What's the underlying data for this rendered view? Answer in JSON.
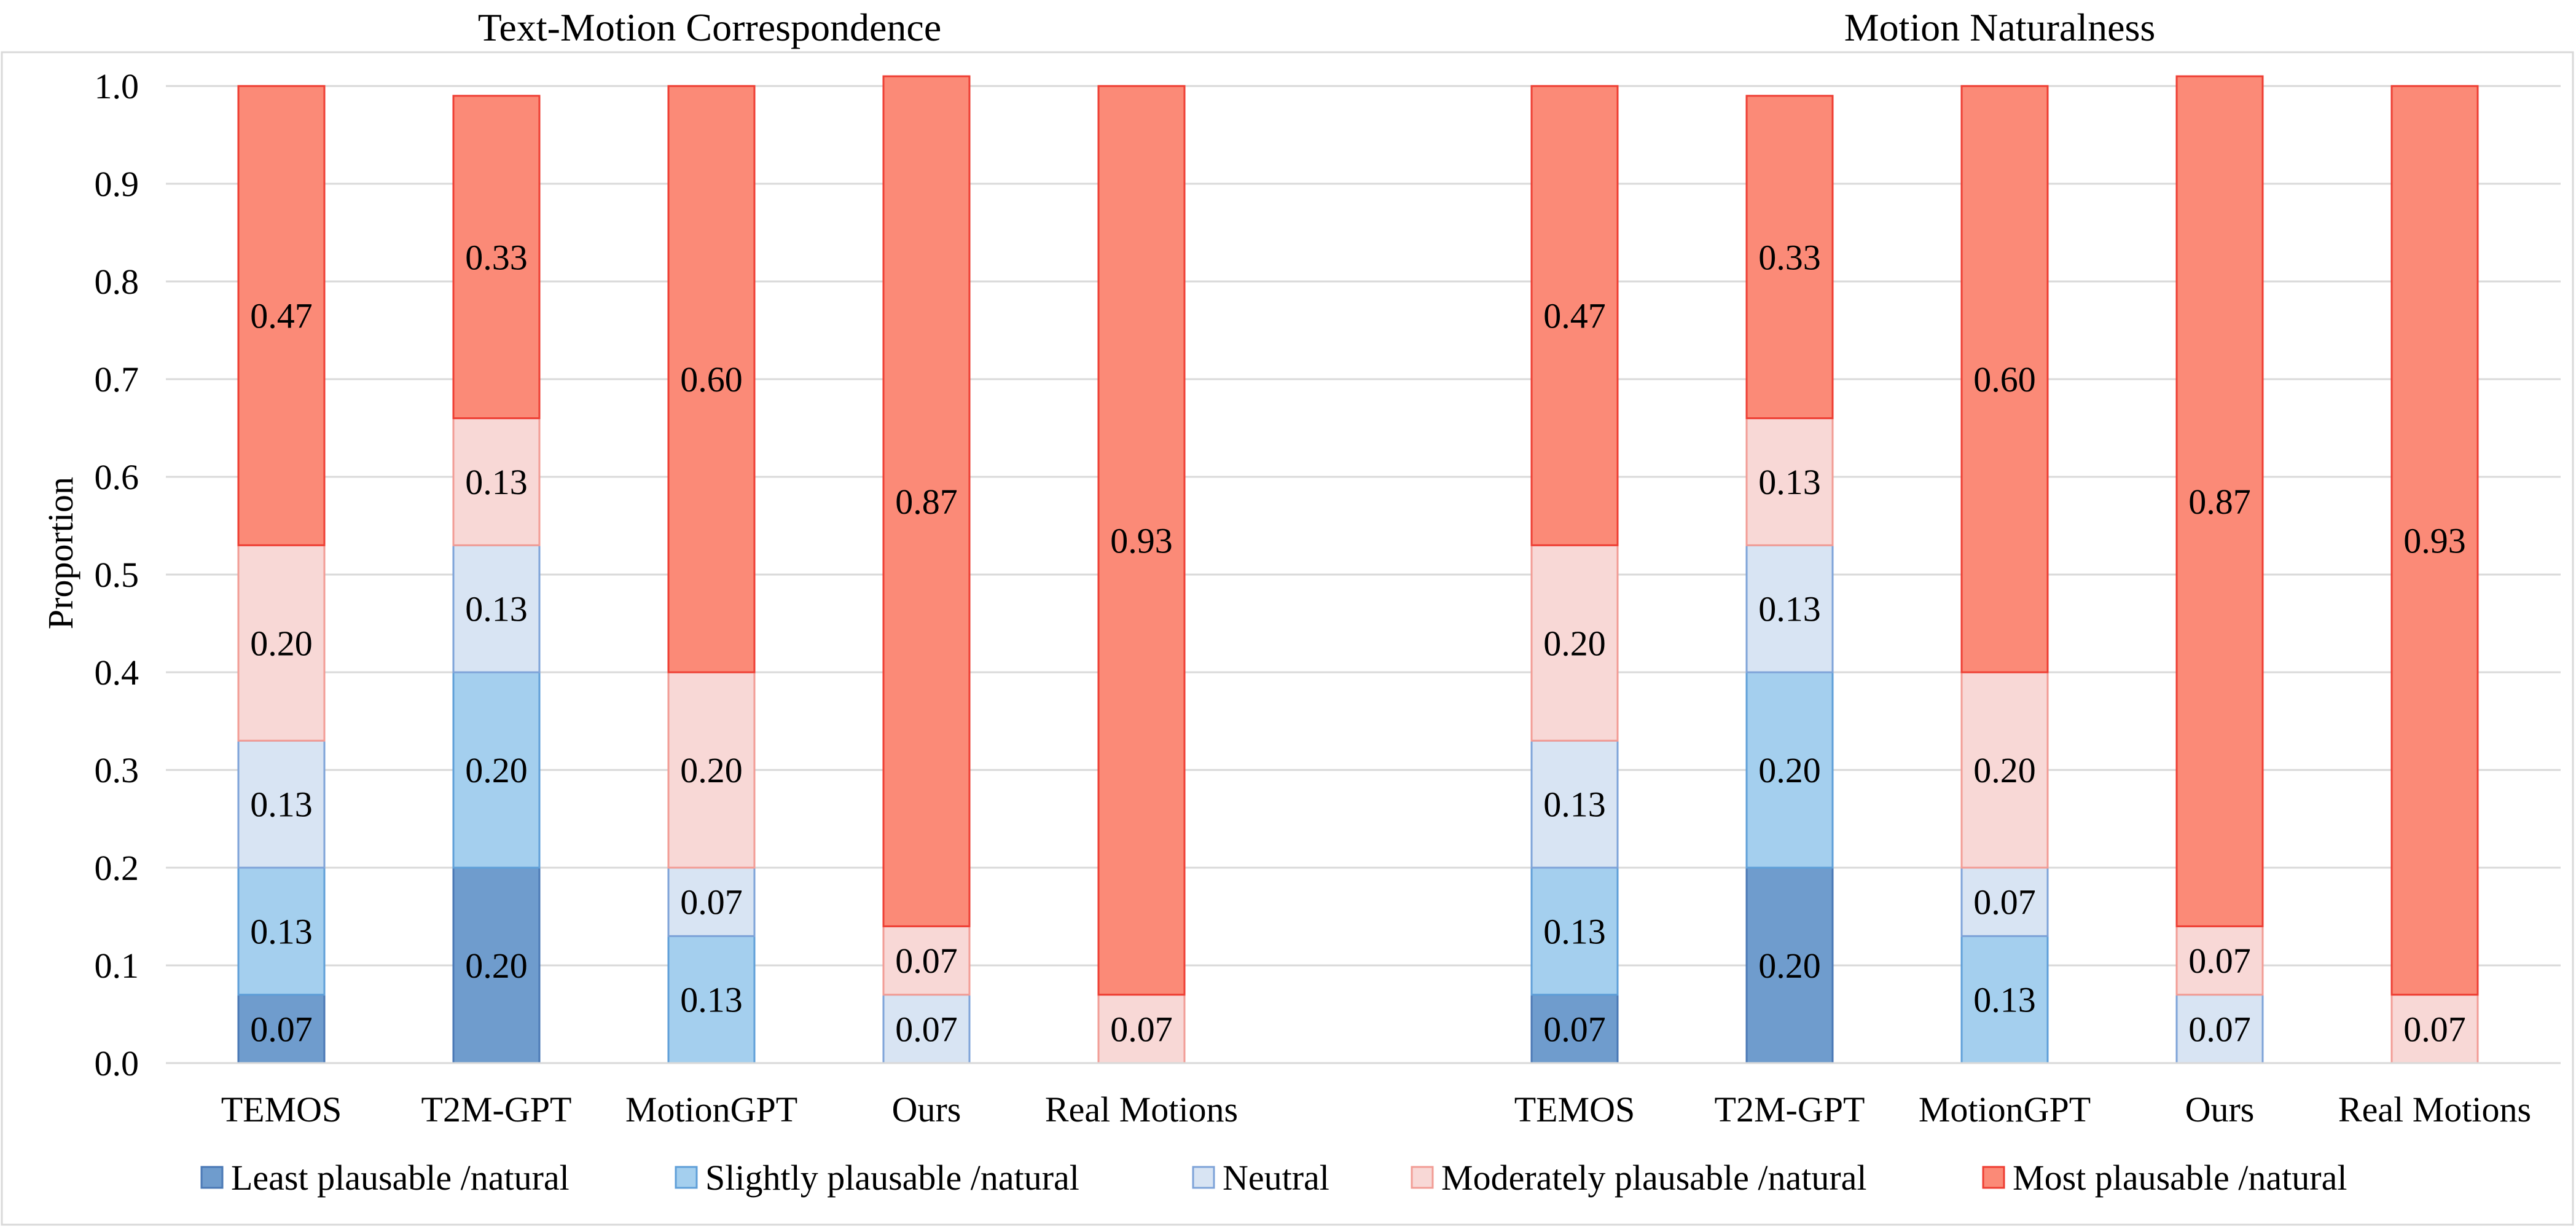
{
  "chart_data": {
    "type": "bar",
    "stacked": true,
    "ylabel": "Proportion",
    "ylim": [
      0,
      1.0
    ],
    "yticks": [
      "0.0",
      "0.1",
      "0.2",
      "0.3",
      "0.4",
      "0.5",
      "0.6",
      "0.7",
      "0.8",
      "0.9",
      "1.0"
    ],
    "grid": true,
    "legend_position": "bottom",
    "series_meta": [
      {
        "name": "Least plausable /natural",
        "fill": "#6f9ccd",
        "stroke": "#4a78b5"
      },
      {
        "name": "Slightly plausable /natural",
        "fill": "#a4cfee",
        "stroke": "#5f9fd8"
      },
      {
        "name": "Neutral",
        "fill": "#d8e4f3",
        "stroke": "#7ea3d8"
      },
      {
        "name": "Moderately plausable /natural",
        "fill": "#f8d8d6",
        "stroke": "#f29c95"
      },
      {
        "name": "Most plausable /natural",
        "fill": "#fb8a77",
        "stroke": "#ee3e33"
      }
    ],
    "panels": [
      {
        "title": "Text-Motion Correspondence",
        "categories": [
          "TEMOS",
          "T2M-GPT",
          "MotionGPT",
          "Ours",
          "Real Motions"
        ],
        "series": [
          {
            "name": "Least plausable /natural",
            "values": [
              0.07,
              0.2,
              0,
              0,
              0
            ],
            "labels": [
              "0.07",
              "0.20",
              "",
              "",
              ""
            ]
          },
          {
            "name": "Slightly plausable /natural",
            "values": [
              0.13,
              0.2,
              0.13,
              0,
              0
            ],
            "labels": [
              "0.13",
              "0.20",
              "0.13",
              "",
              ""
            ]
          },
          {
            "name": "Neutral",
            "values": [
              0.13,
              0.13,
              0.07,
              0.07,
              0
            ],
            "labels": [
              "0.13",
              "0.13",
              "0.07",
              "0.07",
              ""
            ]
          },
          {
            "name": "Moderately plausable /natural",
            "values": [
              0.2,
              0.13,
              0.2,
              0.07,
              0.07
            ],
            "labels": [
              "0.20",
              "0.13",
              "0.20",
              "0.07",
              "0.07"
            ]
          },
          {
            "name": "Most plausable /natural",
            "values": [
              0.47,
              0.33,
              0.6,
              0.87,
              0.93
            ],
            "labels": [
              "0.47",
              "0.33",
              "0.60",
              "0.87",
              "0.93"
            ]
          }
        ]
      },
      {
        "title": "Motion Naturalness",
        "categories": [
          "TEMOS",
          "T2M-GPT",
          "MotionGPT",
          "Ours",
          "Real Motions"
        ],
        "series": [
          {
            "name": "Least plausable /natural",
            "values": [
              0.07,
              0.2,
              0,
              0,
              0
            ],
            "labels": [
              "0.07",
              "0.20",
              "",
              "",
              ""
            ]
          },
          {
            "name": "Slightly plausable /natural",
            "values": [
              0.13,
              0.2,
              0.13,
              0,
              0
            ],
            "labels": [
              "0.13",
              "0.20",
              "0.13",
              "",
              ""
            ]
          },
          {
            "name": "Neutral",
            "values": [
              0.13,
              0.13,
              0.07,
              0.07,
              0
            ],
            "labels": [
              "0.13",
              "0.13",
              "0.07",
              "0.07",
              ""
            ]
          },
          {
            "name": "Moderately plausable /natural",
            "values": [
              0.2,
              0.13,
              0.2,
              0.07,
              0.07
            ],
            "labels": [
              "0.20",
              "0.13",
              "0.20",
              "0.07",
              "0.07"
            ]
          },
          {
            "name": "Most plausable /natural",
            "values": [
              0.47,
              0.33,
              0.6,
              0.87,
              0.93
            ],
            "labels": [
              "0.47",
              "0.33",
              "0.60",
              "0.87",
              "0.93"
            ]
          }
        ]
      }
    ]
  }
}
